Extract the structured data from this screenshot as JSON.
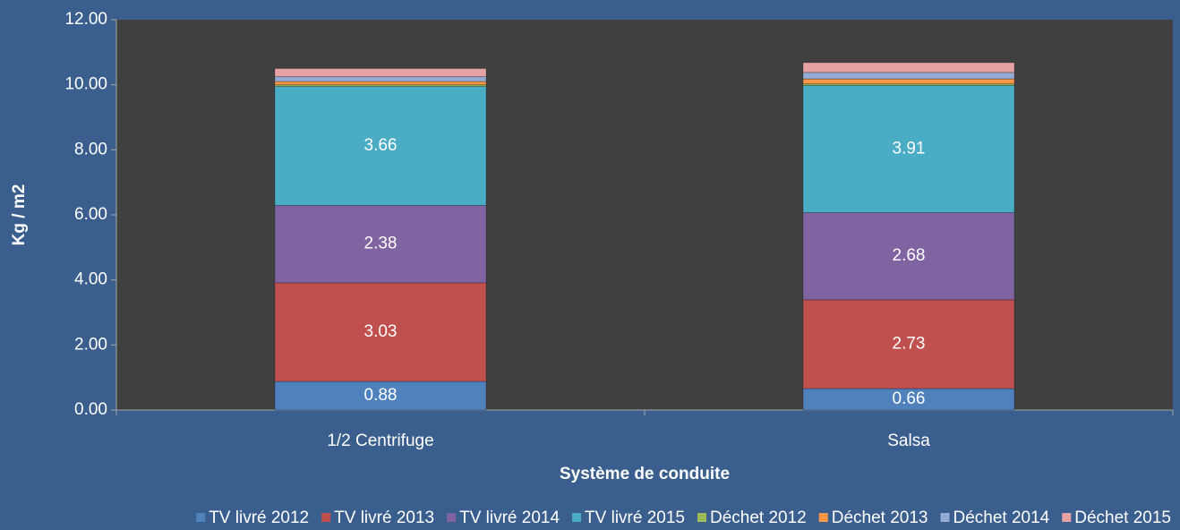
{
  "chart_data": {
    "type": "stacked_bar",
    "y_axis_label": "Kg / m2",
    "x_axis_label": "Système de conduite",
    "categories": [
      "1/2 Centrifuge",
      "Salsa"
    ],
    "series": [
      {
        "name": "TV livré 2012",
        "color": "#4f81bd",
        "values": [
          0.88,
          0.66
        ]
      },
      {
        "name": "TV livré 2013",
        "color": "#c0504d",
        "values": [
          3.03,
          2.73
        ]
      },
      {
        "name": "TV livré 2014",
        "color": "#8064a2",
        "values": [
          2.38,
          2.68
        ]
      },
      {
        "name": "TV livré 2015",
        "color": "#4bacc6",
        "values": [
          3.66,
          3.91
        ]
      },
      {
        "name": "Déchet 2012",
        "color": "#9bbb59",
        "values": [
          0.05,
          0.05
        ]
      },
      {
        "name": "Déchet 2013",
        "color": "#f79646",
        "values": [
          0.1,
          0.15
        ]
      },
      {
        "name": "Déchet 2014",
        "color": "#95abd3",
        "values": [
          0.15,
          0.2
        ]
      },
      {
        "name": "Déchet 2015",
        "color": "#e6a2a2",
        "values": [
          0.25,
          0.3
        ]
      }
    ],
    "ylim": [
      0,
      12
    ],
    "yticks": [
      {
        "value": 0,
        "label": "0.00"
      },
      {
        "value": 2,
        "label": "2.00"
      },
      {
        "value": 4,
        "label": "4.00"
      },
      {
        "value": 6,
        "label": "6.00"
      },
      {
        "value": 8,
        "label": "8.00"
      },
      {
        "value": 10,
        "label": "10.00"
      },
      {
        "value": 12,
        "label": "12.00"
      }
    ],
    "legend": "bottom"
  }
}
